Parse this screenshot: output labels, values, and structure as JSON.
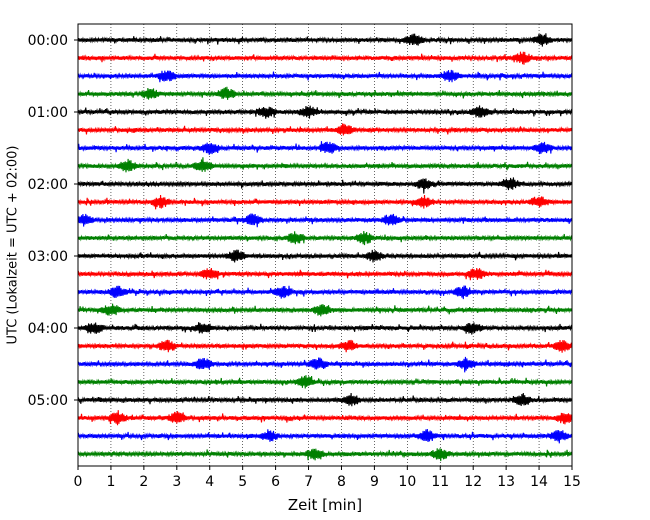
{
  "chart_data": {
    "type": "line",
    "title": "",
    "xlabel": "Zeit  [min]",
    "ylabel": "UTC (Lokalzeit = UTC + 02:00)",
    "xlim": [
      0,
      15
    ],
    "x_ticks": [
      "0",
      "1",
      "2",
      "3",
      "4",
      "5",
      "6",
      "7",
      "8",
      "9",
      "10",
      "11",
      "12",
      "13",
      "14",
      "15"
    ],
    "y_ticks": [
      "00:00",
      "01:00",
      "02:00",
      "03:00",
      "04:00",
      "05:00"
    ],
    "grid": "vertical dotted at each minute",
    "legend": "none",
    "trace_interval_minutes": 15,
    "series_colors": [
      "#000000",
      "#ff0000",
      "#0000ff",
      "#008000"
    ],
    "traces": [
      {
        "start": "00:00",
        "color": "#000000",
        "events": [
          10.2,
          14.1
        ]
      },
      {
        "start": "00:15",
        "color": "#ff0000",
        "events": [
          13.5
        ]
      },
      {
        "start": "00:30",
        "color": "#0000ff",
        "events": [
          2.7,
          11.3
        ]
      },
      {
        "start": "00:45",
        "color": "#008000",
        "events": [
          2.2,
          4.5
        ]
      },
      {
        "start": "01:00",
        "color": "#000000",
        "events": [
          5.7,
          7.0,
          12.2
        ]
      },
      {
        "start": "01:15",
        "color": "#ff0000",
        "events": [
          8.1
        ]
      },
      {
        "start": "01:30",
        "color": "#0000ff",
        "events": [
          4.0,
          7.6,
          14.1
        ]
      },
      {
        "start": "01:45",
        "color": "#008000",
        "events": [
          1.5,
          3.8
        ]
      },
      {
        "start": "02:00",
        "color": "#000000",
        "events": [
          10.5,
          13.1
        ]
      },
      {
        "start": "02:15",
        "color": "#ff0000",
        "events": [
          2.5,
          10.5,
          14.0
        ]
      },
      {
        "start": "02:30",
        "color": "#0000ff",
        "events": [
          0.2,
          5.3,
          9.5
        ]
      },
      {
        "start": "02:45",
        "color": "#008000",
        "events": [
          6.6,
          8.7
        ]
      },
      {
        "start": "03:00",
        "color": "#000000",
        "events": [
          9.0,
          4.8
        ]
      },
      {
        "start": "03:15",
        "color": "#ff0000",
        "events": [
          12.1,
          4.0
        ]
      },
      {
        "start": "03:30",
        "color": "#0000ff",
        "events": [
          1.2,
          11.7,
          6.2
        ]
      },
      {
        "start": "03:45",
        "color": "#008000",
        "events": [
          7.4,
          1.0
        ]
      },
      {
        "start": "04:00",
        "color": "#000000",
        "events": [
          12.0,
          0.5,
          3.8
        ]
      },
      {
        "start": "04:15",
        "color": "#ff0000",
        "events": [
          14.7,
          2.7,
          8.2
        ]
      },
      {
        "start": "04:30",
        "color": "#0000ff",
        "events": [
          3.8,
          11.8,
          7.3
        ]
      },
      {
        "start": "04:45",
        "color": "#008000",
        "events": [
          6.9
        ]
      },
      {
        "start": "05:00",
        "color": "#000000",
        "events": [
          8.3,
          13.5
        ]
      },
      {
        "start": "05:15",
        "color": "#ff0000",
        "events": [
          1.2,
          14.8,
          3.0
        ]
      },
      {
        "start": "05:30",
        "color": "#0000ff",
        "events": [
          10.6,
          5.8,
          14.6
        ]
      },
      {
        "start": "05:45",
        "color": "#008000",
        "events": [
          11.0,
          7.2
        ]
      }
    ]
  }
}
